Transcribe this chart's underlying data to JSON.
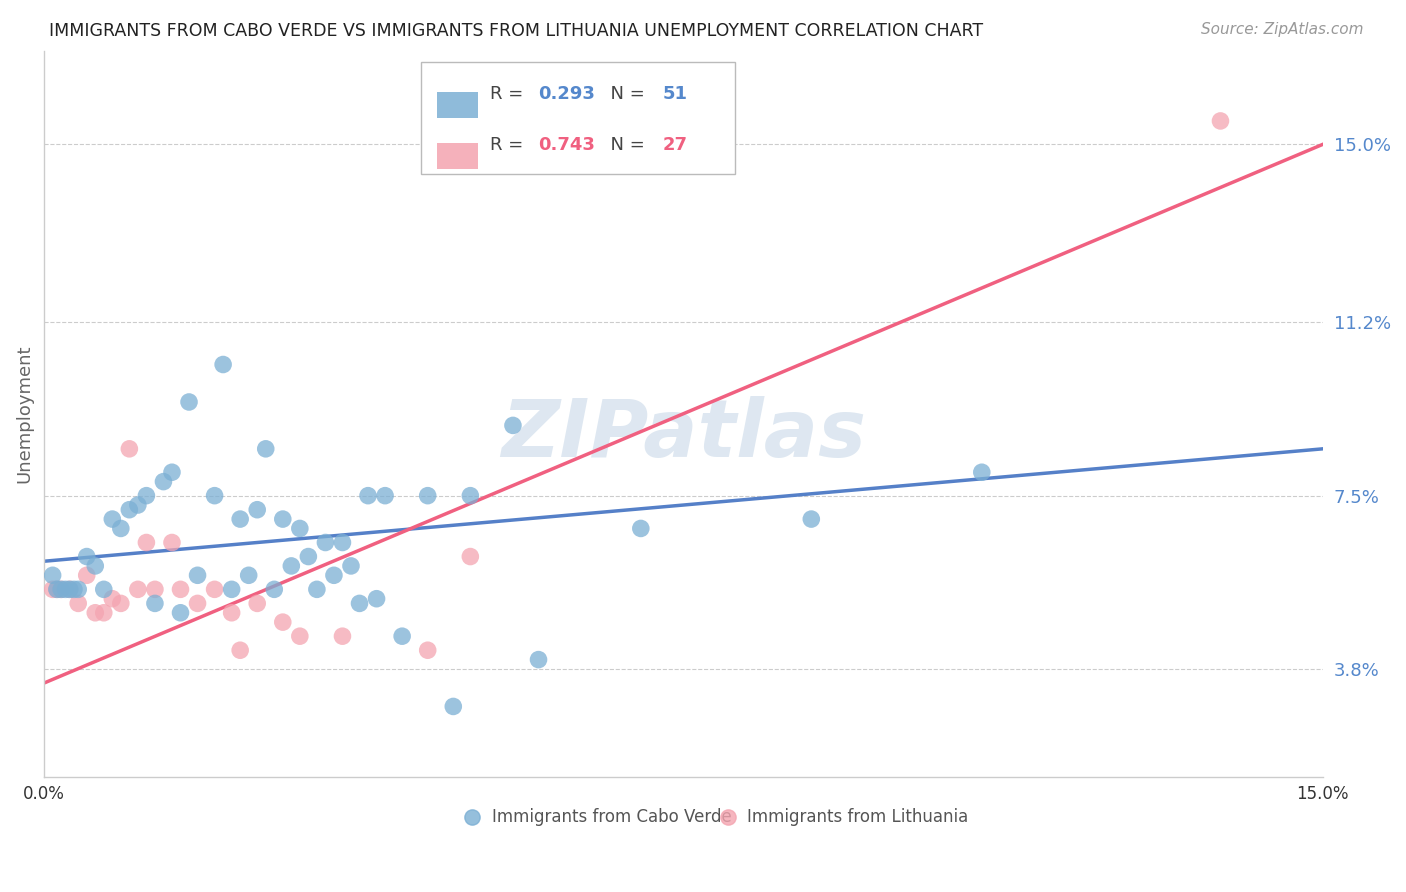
{
  "title": "IMMIGRANTS FROM CABO VERDE VS IMMIGRANTS FROM LITHUANIA UNEMPLOYMENT CORRELATION CHART",
  "source": "Source: ZipAtlas.com",
  "ylabel": "Unemployment",
  "ytick_labels": [
    "3.8%",
    "7.5%",
    "11.2%",
    "15.0%"
  ],
  "ytick_values": [
    3.8,
    7.5,
    11.2,
    15.0
  ],
  "xlim": [
    0.0,
    15.0
  ],
  "ylim": [
    1.5,
    17.0
  ],
  "cabo_verde_color": "#7BAFD4",
  "lithuania_color": "#F4A4B0",
  "trend_cabo_color": "#5580C8",
  "trend_lith_color": "#F06080",
  "cabo_R": "0.293",
  "cabo_N": "51",
  "lith_R": "0.743",
  "lith_N": "27",
  "cabo_verde_x": [
    0.1,
    0.15,
    0.2,
    0.25,
    0.3,
    0.35,
    0.4,
    0.5,
    0.6,
    0.7,
    0.8,
    0.9,
    1.0,
    1.1,
    1.2,
    1.3,
    1.4,
    1.5,
    1.6,
    1.7,
    1.8,
    2.0,
    2.1,
    2.2,
    2.3,
    2.4,
    2.5,
    2.6,
    2.7,
    2.8,
    2.9,
    3.0,
    3.1,
    3.2,
    3.3,
    3.4,
    3.5,
    3.6,
    3.7,
    3.8,
    3.9,
    4.0,
    4.2,
    4.5,
    4.8,
    5.0,
    5.5,
    5.8,
    7.0,
    9.0,
    11.0
  ],
  "cabo_verde_y": [
    5.8,
    5.5,
    5.5,
    5.5,
    5.5,
    5.5,
    5.5,
    6.2,
    6.0,
    5.5,
    7.0,
    6.8,
    7.2,
    7.3,
    7.5,
    5.2,
    7.8,
    8.0,
    5.0,
    9.5,
    5.8,
    7.5,
    10.3,
    5.5,
    7.0,
    5.8,
    7.2,
    8.5,
    5.5,
    7.0,
    6.0,
    6.8,
    6.2,
    5.5,
    6.5,
    5.8,
    6.5,
    6.0,
    5.2,
    7.5,
    5.3,
    7.5,
    4.5,
    7.5,
    3.0,
    7.5,
    9.0,
    4.0,
    6.8,
    7.0,
    8.0
  ],
  "lithuania_x": [
    0.1,
    0.15,
    0.2,
    0.3,
    0.4,
    0.5,
    0.6,
    0.7,
    0.8,
    0.9,
    1.0,
    1.1,
    1.2,
    1.3,
    1.5,
    1.6,
    1.8,
    2.0,
    2.2,
    2.3,
    2.5,
    2.8,
    3.0,
    3.5,
    4.5,
    5.0,
    13.8
  ],
  "lithuania_y": [
    5.5,
    5.5,
    5.5,
    5.5,
    5.2,
    5.8,
    5.0,
    5.0,
    5.3,
    5.2,
    8.5,
    5.5,
    6.5,
    5.5,
    6.5,
    5.5,
    5.2,
    5.5,
    5.0,
    4.2,
    5.2,
    4.8,
    4.5,
    4.5,
    4.2,
    6.2,
    15.5
  ],
  "cabo_trend_x0": 0.0,
  "cabo_trend_y0": 6.1,
  "cabo_trend_x1": 15.0,
  "cabo_trend_y1": 8.5,
  "lith_trend_x0": 0.0,
  "lith_trend_y0": 3.5,
  "lith_trend_x1": 15.0,
  "lith_trend_y1": 15.0,
  "watermark_text": "ZIPatlas",
  "background_color": "#FFFFFF",
  "grid_color": "#DDDDDD",
  "ytick_color": "#5588CC",
  "xtick_color": "#333333"
}
